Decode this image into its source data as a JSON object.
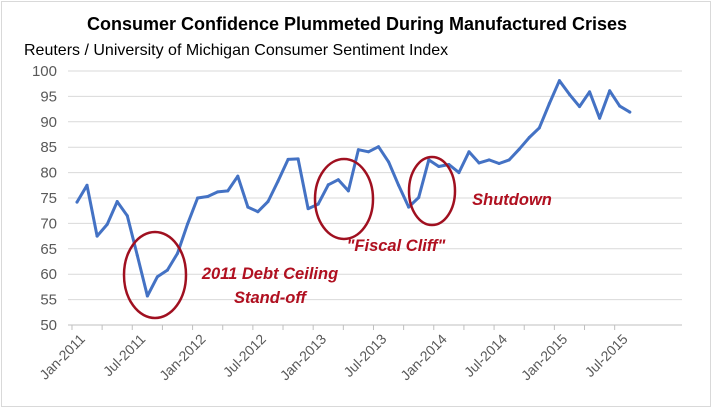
{
  "chart_data": {
    "type": "line",
    "title": "Consumer Confidence Plummeted During Manufactured Crises",
    "subtitle": "Reuters / University of Michigan Consumer Sentiment Index",
    "xlabel": "",
    "ylabel": "",
    "ylim": [
      50,
      100
    ],
    "yticks": [
      50,
      55,
      60,
      65,
      70,
      75,
      80,
      85,
      90,
      95,
      100
    ],
    "xtick_labels": [
      "Jan-2011",
      "Jul-2011",
      "Jan-2012",
      "Jul-2012",
      "Jan-2013",
      "Jul-2013",
      "Jan-2014",
      "Jul-2014",
      "Jan-2015",
      "Jul-2015"
    ],
    "grid": "horizontal",
    "series": [
      {
        "name": "Consumer Sentiment Index",
        "color": "#4472c4",
        "x": [
          "Jan-2011",
          "Feb-2011",
          "Mar-2011",
          "Apr-2011",
          "May-2011",
          "Jun-2011",
          "Jul-2011",
          "Aug-2011",
          "Sep-2011",
          "Oct-2011",
          "Nov-2011",
          "Dec-2011",
          "Jan-2012",
          "Feb-2012",
          "Mar-2012",
          "Apr-2012",
          "May-2012",
          "Jun-2012",
          "Jul-2012",
          "Aug-2012",
          "Sep-2012",
          "Oct-2012",
          "Nov-2012",
          "Dec-2012",
          "Jan-2013",
          "Feb-2013",
          "Mar-2013",
          "Apr-2013",
          "May-2013",
          "Jun-2013",
          "Jul-2013",
          "Aug-2013",
          "Sep-2013",
          "Oct-2013",
          "Nov-2013",
          "Dec-2013",
          "Jan-2014",
          "Feb-2014",
          "Mar-2014",
          "Apr-2014",
          "May-2014",
          "Jun-2014",
          "Jul-2014",
          "Aug-2014",
          "Sep-2014",
          "Oct-2014",
          "Nov-2014",
          "Dec-2014",
          "Jan-2015",
          "Feb-2015",
          "Mar-2015",
          "Apr-2015",
          "May-2015",
          "Jun-2015",
          "Jul-2015",
          "Aug-2015"
        ],
        "values": [
          74.2,
          77.5,
          67.5,
          69.8,
          74.3,
          71.5,
          63.7,
          55.7,
          59.5,
          60.8,
          64.1,
          69.9,
          75.0,
          75.3,
          76.2,
          76.4,
          79.3,
          73.2,
          72.3,
          74.3,
          78.3,
          82.6,
          82.7,
          72.9,
          73.8,
          77.6,
          78.6,
          76.4,
          84.5,
          84.1,
          85.1,
          82.1,
          77.5,
          73.2,
          75.1,
          82.5,
          81.2,
          81.6,
          80.0,
          84.1,
          81.9,
          82.5,
          81.8,
          82.5,
          84.6,
          86.9,
          88.8,
          93.6,
          98.1,
          95.4,
          93.0,
          95.9,
          90.7,
          96.1,
          93.1,
          91.9
        ]
      }
    ],
    "annotations": [
      {
        "label": "debt-ceiling",
        "lines": [
          "2011 Debt Ceiling",
          "Stand-off"
        ]
      },
      {
        "label": "fiscal-cliff",
        "lines": [
          "\"Fiscal Cliff\""
        ]
      },
      {
        "label": "shutdown",
        "lines": [
          "Shutdown"
        ]
      }
    ],
    "highlight_color": "#a01020"
  }
}
